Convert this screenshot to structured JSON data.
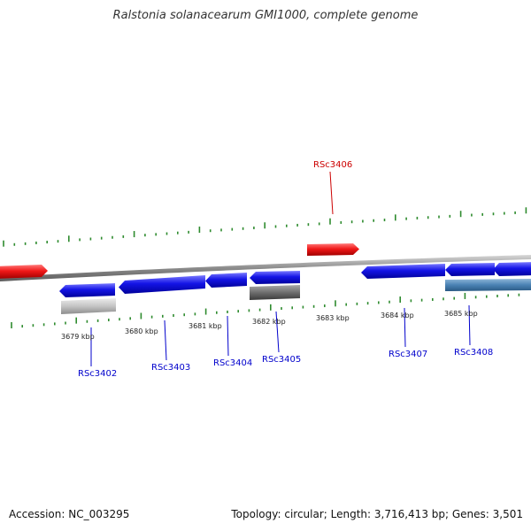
{
  "title": "Ralstonia solanacearum GMI1000, complete genome",
  "footer": {
    "accession": "Accession: NC_003295",
    "summary": "Topology: circular; Length: 3,716,413 bp; Genes: 3,501"
  },
  "colors": {
    "forward_strand": "#e8121a",
    "reverse_strand": "#1414e6",
    "rna_gene": "#bdbdbd",
    "pseudo_gene": "#6e6e6e",
    "steelblue_gene": "#4a82b4",
    "backbone": "#8c8c8c",
    "tick": "#2e8b2e",
    "forward_label": "#cc0000",
    "reverse_label": "#0000cc"
  },
  "scale": {
    "tick_labels": [
      "3679 kbp",
      "3680 kbp",
      "3681 kbp",
      "3682 kbp",
      "3683 kbp",
      "3684 kbp",
      "3685 kbp"
    ]
  },
  "genes": [
    {
      "id": "RSc3402",
      "strand": "reverse",
      "labeled": true
    },
    {
      "id": "RSc3403",
      "strand": "reverse",
      "labeled": true
    },
    {
      "id": "RSc3404",
      "strand": "reverse",
      "labeled": true
    },
    {
      "id": "RSc3405",
      "strand": "reverse",
      "labeled": true
    },
    {
      "id": "RSc3406",
      "strand": "forward",
      "labeled": true
    },
    {
      "id": "RSc3407",
      "strand": "reverse",
      "labeled": true
    },
    {
      "id": "RSc3408",
      "strand": "reverse",
      "labeled": true
    }
  ]
}
